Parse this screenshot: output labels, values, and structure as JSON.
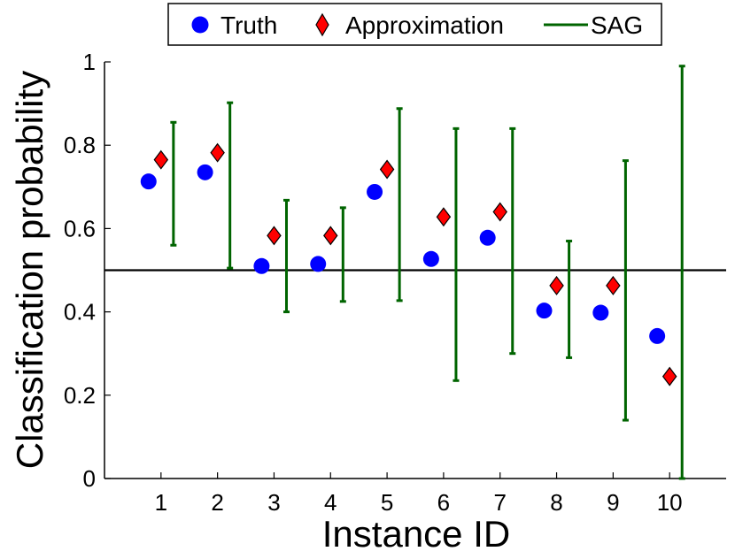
{
  "chart_data": {
    "type": "scatter",
    "title": "",
    "xlabel": "Instance ID",
    "ylabel": "Classification probability",
    "xlim": [
      0,
      11
    ],
    "ylim": [
      0,
      1
    ],
    "x_ticks": [
      1,
      2,
      3,
      4,
      5,
      6,
      7,
      8,
      9,
      10
    ],
    "x_tick_labels": [
      "1",
      "2",
      "3",
      "4",
      "5",
      "6",
      "7",
      "8",
      "9",
      "10"
    ],
    "y_ticks": [
      0,
      0.2,
      0.4,
      0.6,
      0.8,
      1
    ],
    "y_tick_labels": [
      "0",
      "0.2",
      "0.4",
      "0.6",
      "0.8",
      "1"
    ],
    "reference_line": 0.5,
    "legend_position": "top-center",
    "colors": {
      "truth": "#0000ff",
      "approximation": "#ff0000",
      "sag": "#006400",
      "reference": "#000000"
    },
    "series": [
      {
        "name": "Truth",
        "marker": "circle",
        "values": [
          0.713,
          0.735,
          0.51,
          0.515,
          0.688,
          0.527,
          0.578,
          0.403,
          0.398,
          0.342
        ]
      },
      {
        "name": "Approximation",
        "marker": "diamond",
        "values": [
          0.765,
          0.782,
          0.583,
          0.583,
          0.742,
          0.628,
          0.64,
          0.463,
          0.463,
          0.245
        ]
      },
      {
        "name": "SAG",
        "marker": "interval",
        "lower": [
          0.56,
          0.505,
          0.4,
          0.425,
          0.427,
          0.235,
          0.3,
          0.29,
          0.14,
          0.0
        ],
        "upper": [
          0.855,
          0.902,
          0.668,
          0.65,
          0.888,
          0.84,
          0.84,
          0.57,
          0.763,
          0.99
        ]
      }
    ]
  }
}
